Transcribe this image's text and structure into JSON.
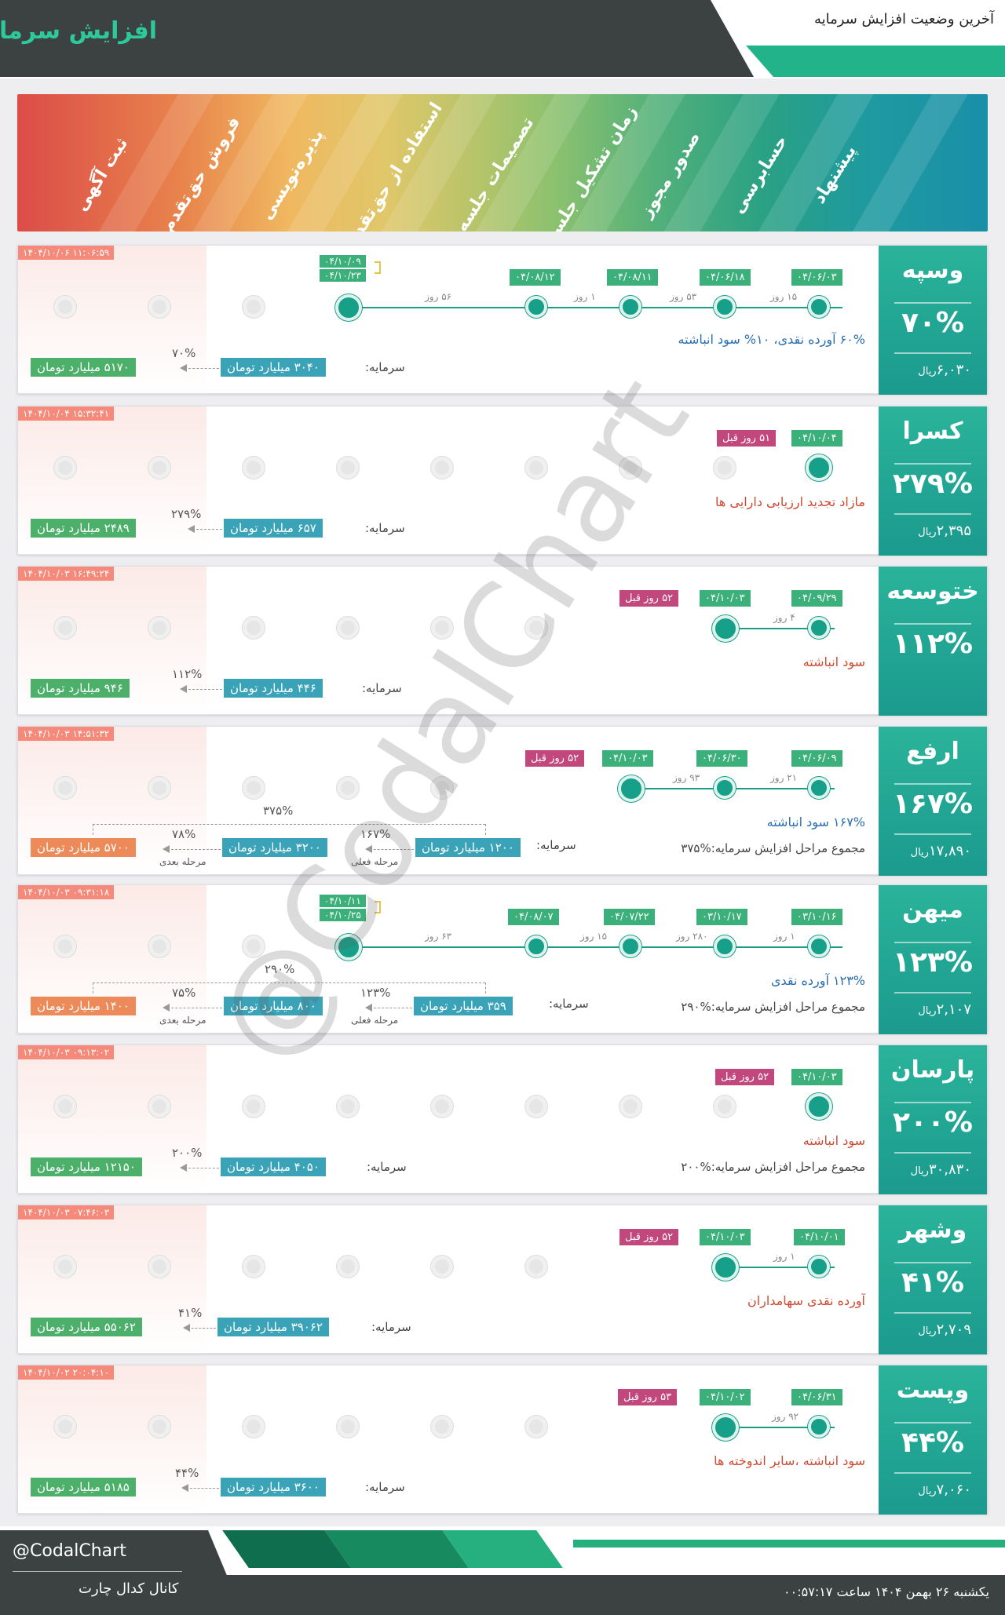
{
  "header": {
    "title": "افزایش سرمایه",
    "subtitle": "آخرین وضعیت افزایش سرمایه"
  },
  "stages": [
    "ثبت آگهی",
    "فروش حق‌تقدم",
    "پذیره‌نویسی",
    "استفاده از حق‌تقدم",
    "تصمیمات جلسه",
    "زمان تشکیل جلسه",
    "صدور مجوز",
    "حسابرسی",
    "پیشنهاد"
  ],
  "cards": [
    {
      "name": "وسپه",
      "pct": "۷۰%",
      "price": "۶,۰۳۰",
      "rial": "ریال",
      "ts": "۱۴۰۴/۱۰/۰۶ ۱۱:۰۶:۵۹",
      "desc": "۶۰% آورده نقدی، ۱۰% سود انباشته",
      "dates": [
        "۰۴/۰۶/۰۳",
        "۰۴/۰۶/۱۸",
        "۰۴/۰۸/۱۱",
        "۰۴/۰۸/۱۲"
      ],
      "date2": [
        "۰۴/۱۰/۰۹",
        "۰۴/۱۰/۲۳"
      ],
      "days": [
        "۱۵ روز",
        "۵۳ روز",
        "۱ روز",
        "۵۶ روز"
      ],
      "cap_label": "سرمایه:",
      "cap_from": "۳۰۴۰ میلیارد تومان",
      "cap_to": "۵۱۷۰ میلیارد تومان",
      "cap_pct": "۷۰%"
    },
    {
      "name": "کسرا",
      "pct": "۲۷۹%",
      "price": "۲,۳۹۵",
      "rial": "ریال",
      "ts": "۱۴۰۴/۱۰/۰۴ ۱۵:۳۲:۴۱",
      "desc": "مازاد تجدید ارزیابی دارایی ها",
      "dates": [
        "۰۴/۱۰/۰۴"
      ],
      "ago": "۵۱ روز قبل",
      "cap_label": "سرمایه:",
      "cap_from": "۶۵۷ میلیارد تومان",
      "cap_to": "۲۴۸۹ میلیارد تومان",
      "cap_pct": "۲۷۹%"
    },
    {
      "name": "ختوسعه",
      "pct": "۱۱۲%",
      "ts": "۱۴۰۴/۱۰/۰۳ ۱۶:۴۹:۲۴",
      "desc": "سود انباشته",
      "dates": [
        "۰۴/۰۹/۲۹",
        "۰۴/۱۰/۰۳"
      ],
      "days": [
        "۴ روز"
      ],
      "ago": "۵۲ روز قبل",
      "cap_label": "سرمایه:",
      "cap_from": "۴۴۶ میلیارد تومان",
      "cap_to": "۹۴۶ میلیارد تومان",
      "cap_pct": "۱۱۲%"
    },
    {
      "name": "ارفع",
      "pct": "۱۶۷%",
      "price": "۱۷,۸۹۰",
      "rial": "ریال",
      "ts": "۱۴۰۴/۱۰/۰۳ ۱۴:۵۱:۳۲",
      "desc": "۱۶۷% سود انباشته",
      "sum": "مجموع مراحل افزایش سرمایه:%۳۷۵",
      "dates": [
        "۰۴/۰۶/۰۹",
        "۰۴/۰۶/۳۰",
        "۰۴/۱۰/۰۳"
      ],
      "days": [
        "۲۱ روز",
        "۹۳ روز"
      ],
      "ago": "۵۲ روز قبل",
      "cap_label": "سرمایه:",
      "cap_from": "۱۲۰۰ میلیارد تومان",
      "cap_mid": "۳۲۰۰ میلیارد تومان",
      "cap_to": "۵۷۰۰ میلیارد تومان",
      "cap_pct": "۱۶۷%",
      "cap_pct2": "۷۸%",
      "cap_total": "۳۷۵%",
      "st_cur": "مرحله فعلی",
      "st_next": "مرحله بعدی"
    },
    {
      "name": "میهن",
      "pct": "۱۲۳%",
      "price": "۲,۱۰۷",
      "rial": "ریال",
      "ts": "۱۴۰۴/۱۰/۰۳ ۰۹:۳۱:۱۸",
      "desc": "۱۲۳% آورده نقدی",
      "sum": "مجموع مراحل افزایش سرمایه:%۲۹۰",
      "dates": [
        "۰۳/۱۰/۱۶",
        "۰۳/۱۰/۱۷",
        "۰۴/۰۷/۲۲",
        "۰۴/۰۸/۰۷"
      ],
      "date2": [
        "۰۴/۱۰/۱۱",
        "۰۴/۱۰/۲۵"
      ],
      "days": [
        "۱ روز",
        "۲۸۰ روز",
        "۱۵ روز",
        "۶۳ روز"
      ],
      "cap_label": "سرمایه:",
      "cap_from": "۳۵۹ میلیارد تومان",
      "cap_mid": "۸۰۰ میلیارد تومان",
      "cap_to": "۱۴۰۰ میلیارد تومان",
      "cap_pct": "۱۲۳%",
      "cap_pct2": "۷۵%",
      "cap_total": "۲۹۰%",
      "st_cur": "مرحله فعلی",
      "st_next": "مرحله بعدی"
    },
    {
      "name": "پارسان",
      "pct": "۲۰۰%",
      "price": "۳۰,۸۳۰",
      "rial": "ریال",
      "ts": "۱۴۰۴/۱۰/۰۳ ۰۹:۱۳:۰۲",
      "desc": "سود انباشته",
      "sum": "مجموع مراحل افزایش سرمایه:%۲۰۰",
      "dates": [
        "۰۴/۱۰/۰۳"
      ],
      "ago": "۵۲ روز قبل",
      "cap_label": "سرمایه:",
      "cap_from": "۴۰۵۰ میلیارد تومان",
      "cap_to": "۱۲۱۵۰ میلیارد تومان",
      "cap_pct": "۲۰۰%"
    },
    {
      "name": "وشهر",
      "pct": "۴۱%",
      "price": "۲,۷۰۹",
      "rial": "ریال",
      "ts": "۱۴۰۴/۱۰/۰۳ ۰۷:۴۶:۰۳",
      "desc": "آورده نقدی سهامداران",
      "dates": [
        "۰۴/۱۰/۰۱",
        "۰۴/۱۰/۰۳"
      ],
      "days": [
        "۱ روز"
      ],
      "ago": "۵۲ روز قبل",
      "cap_label": "سرمایه:",
      "cap_from": "۳۹۰۶۲ میلیارد تومان",
      "cap_to": "۵۵۰۶۲ میلیارد تومان",
      "cap_pct": "۴۱%"
    },
    {
      "name": "وپست",
      "pct": "۴۴%",
      "price": "۷,۰۶۰",
      "rial": "ریال",
      "ts": "۱۴۰۴/۱۰/۰۲ ۲۰:۰۴:۱۰",
      "desc": "سود انباشته ،سایر اندوخته ها",
      "dates": [
        "۰۴/۰۶/۳۱",
        "۰۴/۱۰/۰۲"
      ],
      "days": [
        "۹۲ روز"
      ],
      "ago": "۵۳ روز قبل",
      "cap_label": "سرمایه:",
      "cap_from": "۳۶۰۰ میلیارد تومان",
      "cap_to": "۵۱۸۵ میلیارد تومان",
      "cap_pct": "۴۴%"
    }
  ],
  "watermark": "@CodalChart",
  "footer": {
    "handle": "@CodalChart",
    "channel": "کانال کدال چارت",
    "datetime": "یکشنبه ۲۶ بهمن ۱۴۰۴ ساعت ۰۰:۵۷:۱۷"
  }
}
